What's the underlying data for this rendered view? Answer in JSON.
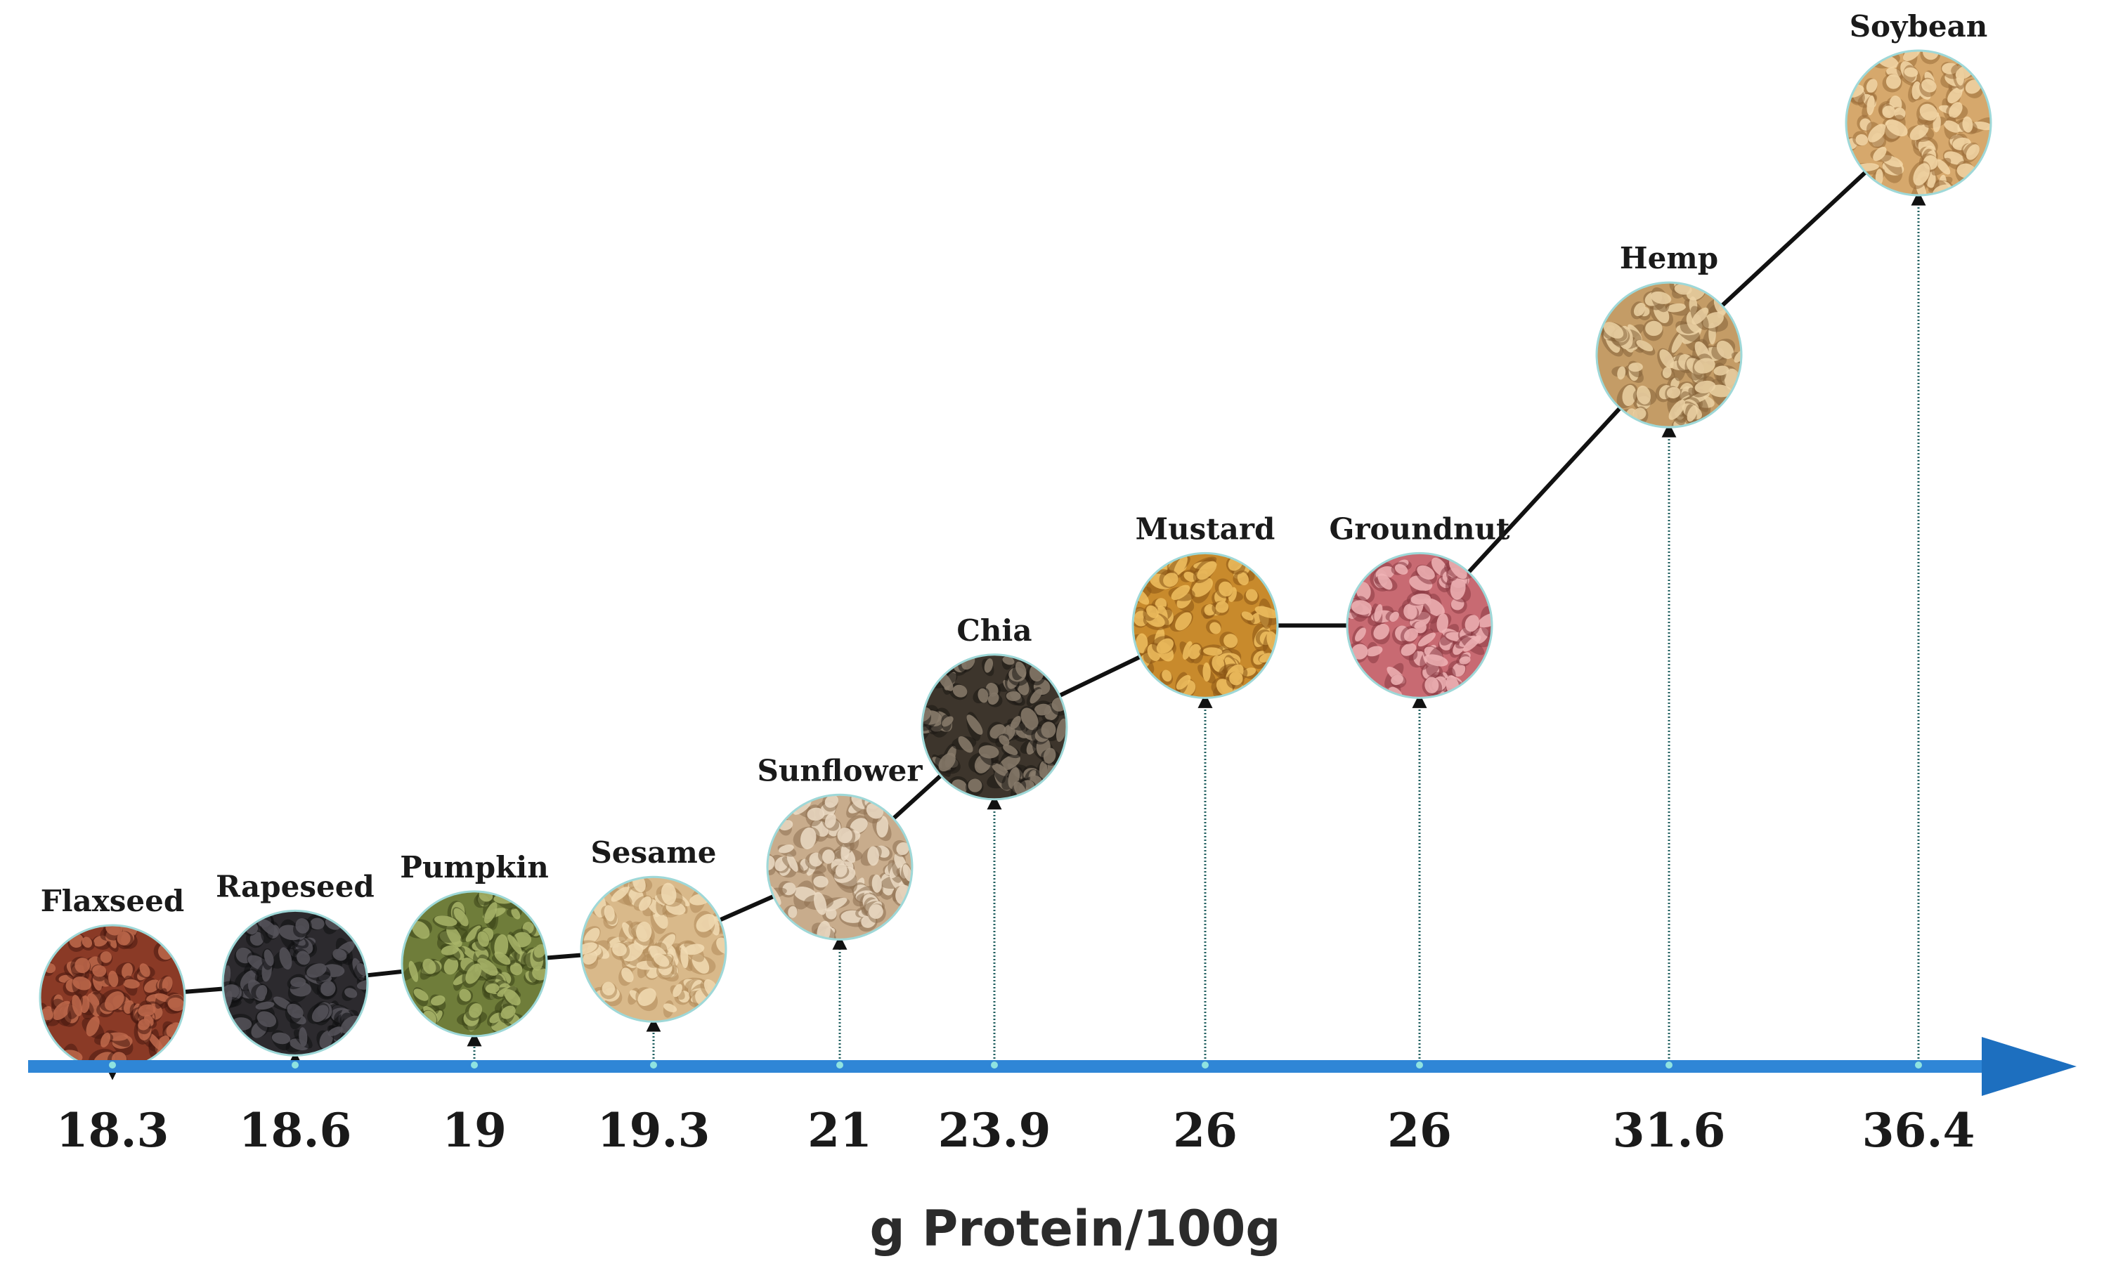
{
  "chart_data": {
    "type": "line",
    "title": "",
    "xlabel": "g Protein/100g",
    "ylabel": "",
    "grid": false,
    "legend": "none",
    "categories": [
      "Flaxseed",
      "Rapeseed",
      "Pumpkin",
      "Sesame",
      "Sunflower",
      "Chia",
      "Mustard",
      "Groundnut",
      "Hemp",
      "Soybean"
    ],
    "values": [
      18.3,
      18.6,
      19,
      19.3,
      21,
      23.9,
      26,
      26,
      31.6,
      36.4
    ],
    "value_labels": [
      "18.3",
      "18.6",
      "19",
      "19.3",
      "21",
      "23.9",
      "26",
      "26",
      "31.6",
      "36.4"
    ],
    "seed_colors": [
      {
        "base": "#8a3a26",
        "dot": "#c06a4c",
        "dark": "#4a1a10"
      },
      {
        "base": "#2c2a2e",
        "dot": "#56535a",
        "dark": "#101012"
      },
      {
        "base": "#6f7d3a",
        "dot": "#a9b56a",
        "dark": "#3a4418"
      },
      {
        "base": "#d9b98a",
        "dot": "#f2dcb4",
        "dark": "#b08a5a"
      },
      {
        "base": "#c8ac8c",
        "dot": "#ecdcc6",
        "dark": "#8e7152"
      },
      {
        "base": "#3d352c",
        "dot": "#8a7d6c",
        "dark": "#1c1814"
      },
      {
        "base": "#c88a2c",
        "dot": "#f0c060",
        "dark": "#8a5616"
      },
      {
        "base": "#c86a72",
        "dot": "#f0b4b6",
        "dark": "#8a3a44"
      },
      {
        "base": "#c49c66",
        "dot": "#ecd2a4",
        "dark": "#86643a"
      },
      {
        "base": "#d6a86c",
        "dot": "#f4d8a8",
        "dark": "#9a6e3a"
      }
    ],
    "colors": {
      "axis": "#2f86d6",
      "axis_dark": "#1d6fbf",
      "connector": "#111111",
      "stem": "#1f5f5f"
    }
  }
}
